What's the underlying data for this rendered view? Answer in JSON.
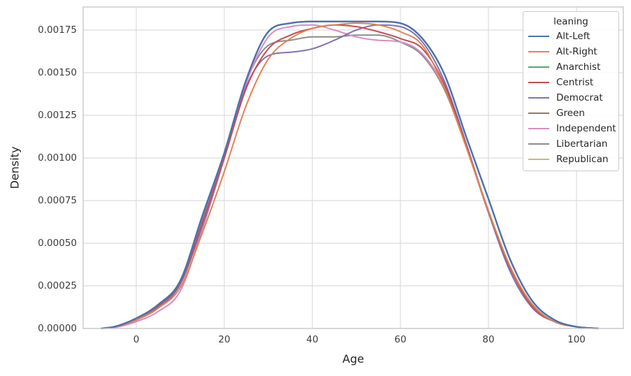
{
  "figure": {
    "background": "#ffffff"
  },
  "chart_data": {
    "type": "line",
    "subtype": "kde-density",
    "title": "",
    "xlabel": "Age",
    "ylabel": "Density",
    "legend_title": "leaning",
    "legend_position": "upper right",
    "grid": true,
    "grid_color": "#dcdcdc",
    "spine_color": "#c9c9c9",
    "xlim": [
      -12.1,
      110.6
    ],
    "ylim": [
      0,
      0.001885
    ],
    "x_ticks": [
      0,
      20,
      40,
      60,
      80,
      100
    ],
    "y_ticks": [
      0.0,
      0.00025,
      0.0005,
      0.00075,
      0.001,
      0.00125,
      0.0015,
      0.00175
    ],
    "x": [
      -8,
      -5,
      0,
      5,
      10,
      15,
      20,
      25,
      30,
      35,
      40,
      45,
      50,
      55,
      60,
      65,
      70,
      75,
      80,
      85,
      90,
      95,
      100,
      105
    ],
    "series": [
      {
        "name": "Alt-Left",
        "color": "#4C72B0",
        "line_width": 2.4,
        "values": [
          0,
          1e-05,
          6e-05,
          0.00014,
          0.00028,
          0.00066,
          0.00103,
          0.00146,
          0.00174,
          0.00179,
          0.0018,
          0.0018,
          0.0018,
          0.0018,
          0.00179,
          0.0017,
          0.00149,
          0.00112,
          0.00076,
          0.0004,
          0.00016,
          5e-05,
          1e-05,
          0
        ]
      },
      {
        "name": "Alt-Right",
        "color": "#DD8452",
        "line_width": 2,
        "values": [
          0,
          1e-05,
          5e-05,
          0.00012,
          0.00024,
          0.00056,
          0.00092,
          0.00131,
          0.00158,
          0.0017,
          0.00176,
          0.00178,
          0.00179,
          0.00178,
          0.00174,
          0.00166,
          0.00141,
          0.00106,
          0.00069,
          0.00036,
          0.00014,
          4e-05,
          1e-05,
          0
        ]
      },
      {
        "name": "Anarchist",
        "color": "#55A868",
        "line_width": 2,
        "values": [
          0,
          1e-05,
          6e-05,
          0.00014,
          0.00028,
          0.00066,
          0.00103,
          0.00146,
          0.00174,
          0.00179,
          0.0018,
          0.0018,
          0.0018,
          0.0018,
          0.00179,
          0.0017,
          0.00149,
          0.00112,
          0.00076,
          0.0004,
          0.00016,
          5e-05,
          1e-05,
          0
        ]
      },
      {
        "name": "Centrist",
        "color": "#C44E52",
        "line_width": 2,
        "values": [
          0,
          1e-05,
          5e-05,
          0.00013,
          0.00027,
          0.00062,
          0.001,
          0.00141,
          0.00164,
          0.00172,
          0.00176,
          0.00178,
          0.00177,
          0.00174,
          0.0017,
          0.00164,
          0.00143,
          0.00107,
          0.00069,
          0.00035,
          0.00013,
          4e-05,
          1e-05,
          0
        ]
      },
      {
        "name": "Democrat",
        "color": "#8172B3",
        "line_width": 2,
        "values": [
          0,
          1e-05,
          5e-05,
          0.00012,
          0.00026,
          0.0006,
          0.001,
          0.00142,
          0.0016,
          0.00162,
          0.00164,
          0.00169,
          0.00175,
          0.00178,
          0.00177,
          0.00168,
          0.00145,
          0.00108,
          0.00068,
          0.00033,
          0.00012,
          4e-05,
          1e-05,
          0
        ]
      },
      {
        "name": "Green",
        "color": "#937860",
        "line_width": 2,
        "values": [
          0,
          1e-05,
          6e-05,
          0.00014,
          0.00028,
          0.00066,
          0.00103,
          0.00146,
          0.00174,
          0.00179,
          0.0018,
          0.0018,
          0.0018,
          0.0018,
          0.00179,
          0.0017,
          0.00149,
          0.00112,
          0.00076,
          0.0004,
          0.00016,
          5e-05,
          1e-05,
          0
        ]
      },
      {
        "name": "Independent",
        "color": "#DA8BC3",
        "line_width": 2,
        "values": [
          0,
          5e-06,
          4e-05,
          0.0001,
          0.00022,
          0.00058,
          0.001,
          0.00144,
          0.00171,
          0.00177,
          0.00178,
          0.00175,
          0.00171,
          0.00169,
          0.00168,
          0.00161,
          0.00141,
          0.00106,
          0.00069,
          0.00035,
          0.00013,
          4e-05,
          1e-05,
          0
        ]
      },
      {
        "name": "Libertarian",
        "color": "#8C8C8C",
        "line_width": 2,
        "values": [
          0,
          1e-05,
          6e-05,
          0.00014,
          0.00028,
          0.00064,
          0.00102,
          0.00145,
          0.00166,
          0.00169,
          0.00171,
          0.00171,
          0.00172,
          0.00172,
          0.00168,
          0.0016,
          0.0014,
          0.00106,
          0.00068,
          0.00035,
          0.00014,
          4e-05,
          1e-05,
          0
        ]
      },
      {
        "name": "Republican",
        "color": "#CCB974",
        "line_width": 2,
        "values": [
          0,
          1e-05,
          6e-05,
          0.00014,
          0.00028,
          0.00066,
          0.00103,
          0.00146,
          0.00174,
          0.00179,
          0.0018,
          0.0018,
          0.0018,
          0.0018,
          0.00179,
          0.0017,
          0.00149,
          0.00112,
          0.00076,
          0.0004,
          0.00016,
          5e-05,
          1e-05,
          0
        ]
      }
    ]
  }
}
